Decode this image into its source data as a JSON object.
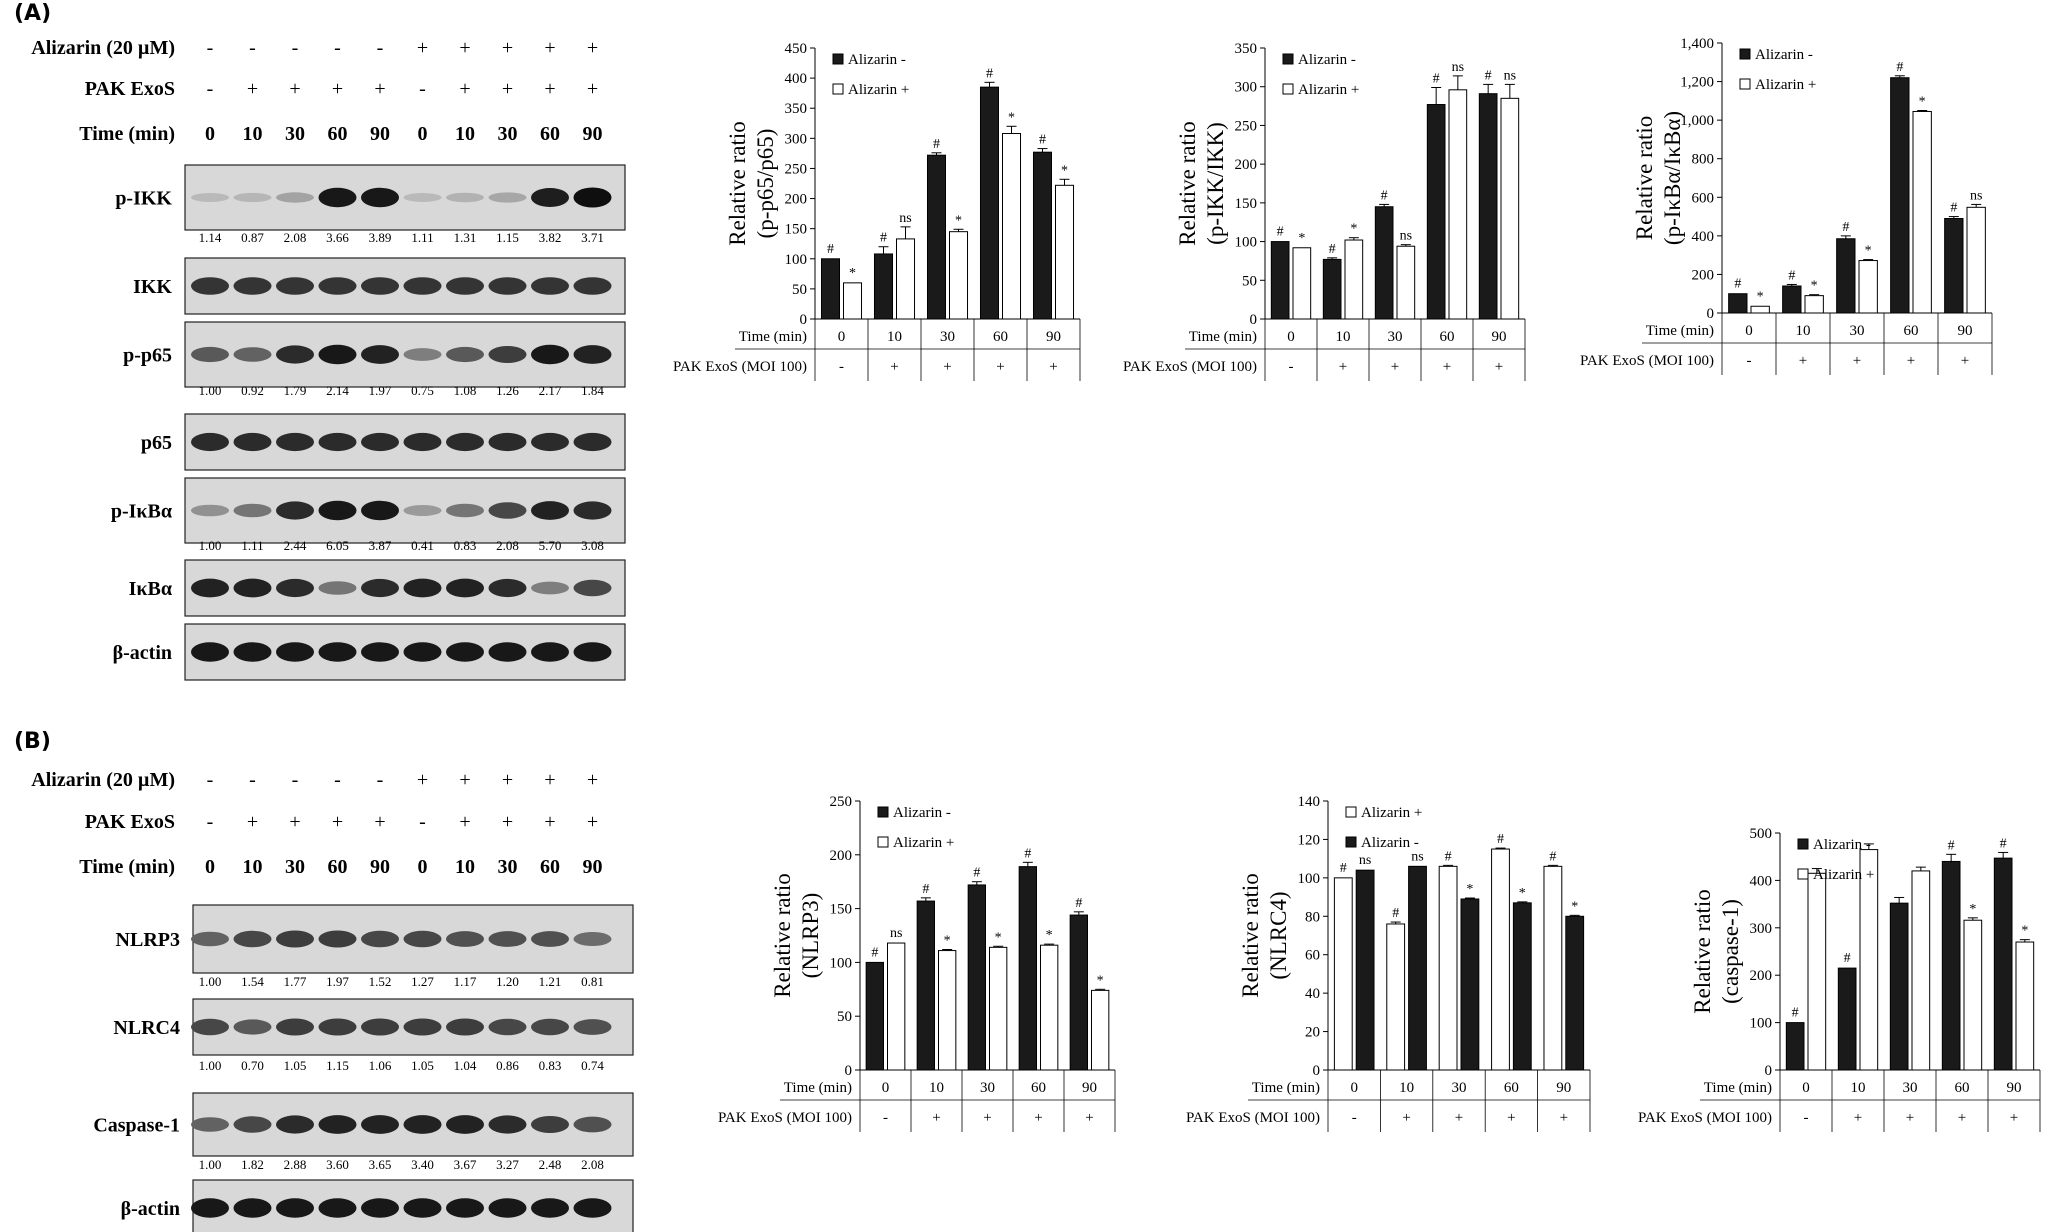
{
  "panels": [
    {
      "label": "(A)",
      "conditions": {
        "alizarin_label": "Alizarin (20 µM)",
        "alizarin": [
          "-",
          "-",
          "-",
          "-",
          "-",
          "+",
          "+",
          "+",
          "+",
          "+"
        ],
        "exos_label": "PAK ExoS",
        "exos": [
          "-",
          "+",
          "+",
          "+",
          "+",
          "-",
          "+",
          "+",
          "+",
          "+"
        ],
        "time_label": "Time (min)",
        "time": [
          "0",
          "10",
          "30",
          "60",
          "90",
          "0",
          "10",
          "30",
          "60",
          "90"
        ]
      },
      "blots": [
        {
          "name": "p-IKK",
          "intensity": [
            0.08,
            0.1,
            0.2,
            0.95,
            0.95,
            0.08,
            0.12,
            0.18,
            0.92,
            1.0
          ],
          "quant": [
            "1.14",
            "0.87",
            "2.08",
            "3.66",
            "3.89",
            "1.11",
            "1.31",
            "1.15",
            "3.82",
            "3.71"
          ]
        },
        {
          "name": "IKK",
          "intensity": [
            0.8,
            0.8,
            0.8,
            0.8,
            0.8,
            0.8,
            0.8,
            0.8,
            0.8,
            0.8
          ]
        },
        {
          "name": "p-p65",
          "intensity": [
            0.6,
            0.55,
            0.85,
            0.95,
            0.9,
            0.4,
            0.6,
            0.75,
            0.95,
            0.9
          ],
          "quant": [
            "1.00",
            "0.92",
            "1.79",
            "2.14",
            "1.97",
            "0.75",
            "1.08",
            "1.26",
            "2.17",
            "1.84"
          ]
        },
        {
          "name": "p65",
          "intensity": [
            0.85,
            0.85,
            0.85,
            0.85,
            0.85,
            0.85,
            0.85,
            0.85,
            0.85,
            0.85
          ]
        },
        {
          "name": "p-IκBα",
          "intensity": [
            0.3,
            0.45,
            0.85,
            0.95,
            0.95,
            0.25,
            0.45,
            0.7,
            0.9,
            0.85
          ],
          "quant": [
            "1.00",
            "1.11",
            "2.44",
            "6.05",
            "3.87",
            "0.41",
            "0.83",
            "2.08",
            "5.70",
            "3.08"
          ]
        },
        {
          "name": "IκBα",
          "intensity": [
            0.9,
            0.9,
            0.85,
            0.45,
            0.85,
            0.9,
            0.9,
            0.85,
            0.4,
            0.7
          ]
        },
        {
          "name": "β-actin",
          "intensity": [
            0.95,
            0.95,
            0.95,
            0.95,
            0.95,
            0.95,
            0.95,
            0.95,
            0.95,
            0.95
          ]
        }
      ]
    },
    {
      "label": "(B)",
      "conditions": {
        "alizarin_label": "Alizarin (20 µM)",
        "alizarin": [
          "-",
          "-",
          "-",
          "-",
          "-",
          "+",
          "+",
          "+",
          "+",
          "+"
        ],
        "exos_label": "PAK ExoS",
        "exos": [
          "-",
          "+",
          "+",
          "+",
          "+",
          "-",
          "+",
          "+",
          "+",
          "+"
        ],
        "time_label": "Time (min)",
        "time": [
          "0",
          "10",
          "30",
          "60",
          "90",
          "0",
          "10",
          "30",
          "60",
          "90"
        ]
      },
      "blots": [
        {
          "name": "NLRP3",
          "intensity": [
            0.55,
            0.7,
            0.75,
            0.75,
            0.7,
            0.7,
            0.65,
            0.65,
            0.65,
            0.5
          ],
          "quant": [
            "1.00",
            "1.54",
            "1.77",
            "1.97",
            "1.52",
            "1.27",
            "1.17",
            "1.20",
            "1.21",
            "0.81"
          ]
        },
        {
          "name": "NLRC4",
          "intensity": [
            0.7,
            0.6,
            0.75,
            0.75,
            0.75,
            0.75,
            0.75,
            0.7,
            0.7,
            0.65
          ],
          "quant": [
            "1.00",
            "0.70",
            "1.05",
            "1.15",
            "1.06",
            "1.05",
            "1.04",
            "0.86",
            "0.83",
            "0.74"
          ]
        },
        {
          "name": "Caspase-1",
          "intensity": [
            0.55,
            0.7,
            0.85,
            0.9,
            0.9,
            0.9,
            0.9,
            0.85,
            0.75,
            0.65
          ],
          "quant": [
            "1.00",
            "1.82",
            "2.88",
            "3.60",
            "3.65",
            "3.40",
            "3.67",
            "3.27",
            "2.48",
            "2.08"
          ]
        },
        {
          "name": "β-actin",
          "intensity": [
            0.95,
            0.95,
            0.95,
            0.95,
            0.95,
            0.95,
            0.95,
            0.95,
            0.95,
            0.95
          ]
        }
      ]
    }
  ],
  "chart_data": [
    {
      "type": "bar",
      "panel": "A",
      "ylabel": "Relative ratio\n(p-p65/p65)",
      "ylim": [
        0,
        450
      ],
      "ytick_step": 50,
      "categories": [
        "0",
        "10",
        "30",
        "60",
        "90"
      ],
      "row1_label": "Time (min)",
      "row2_label": "PAK ExoS (MOI 100)",
      "row2": [
        "-",
        "+",
        "+",
        "+",
        "+"
      ],
      "legend": "top-left",
      "series": [
        {
          "name": "Alizarin -",
          "values": [
            100,
            108,
            272,
            385,
            277
          ],
          "errors": [
            0,
            12,
            4,
            8,
            6
          ],
          "marks": [
            "#",
            "#",
            "#",
            "#",
            "#"
          ]
        },
        {
          "name": "Alizarin +",
          "values": [
            60,
            133,
            145,
            308,
            222
          ],
          "errors": [
            0,
            20,
            4,
            12,
            10
          ],
          "marks": [
            "*",
            "ns",
            "*",
            "*",
            "*"
          ]
        }
      ]
    },
    {
      "type": "bar",
      "panel": "A",
      "ylabel": "Relative ratio\n(p-IKK/IKK)",
      "ylim": [
        0,
        350
      ],
      "ytick_step": 50,
      "categories": [
        "0",
        "10",
        "30",
        "60",
        "90"
      ],
      "row1_label": "Time (min)",
      "row2_label": "PAK ExoS (MOI 100)",
      "row2": [
        "-",
        "+",
        "+",
        "+",
        "+"
      ],
      "legend": "top-left",
      "series": [
        {
          "name": "Alizarin -",
          "values": [
            100,
            77,
            145,
            277,
            291
          ],
          "errors": [
            0,
            2,
            3,
            22,
            12
          ],
          "marks": [
            "#",
            "#",
            "#",
            "#",
            "#"
          ]
        },
        {
          "name": "Alizarin +",
          "values": [
            92,
            102,
            94,
            296,
            285
          ],
          "errors": [
            0,
            3,
            2,
            18,
            18
          ],
          "marks": [
            "*",
            "*",
            "ns",
            "ns",
            "ns"
          ]
        }
      ]
    },
    {
      "type": "bar",
      "panel": "A",
      "ylabel": "Relative ratio\n(p-IκBα/IκBα)",
      "ylim": [
        0,
        1400
      ],
      "ytick_step": 200,
      "tick_format": "comma",
      "categories": [
        "0",
        "10",
        "30",
        "60",
        "90"
      ],
      "row1_label": "Time (min)",
      "row2_label": "PAK ExoS (MOI 100)",
      "row2": [
        "-",
        "+",
        "+",
        "+",
        "+"
      ],
      "legend": "top-left",
      "series": [
        {
          "name": "Alizarin -",
          "values": [
            100,
            140,
            385,
            1220,
            490
          ],
          "errors": [
            0,
            8,
            15,
            10,
            10
          ],
          "marks": [
            "#",
            "#",
            "#",
            "#",
            "#"
          ]
        },
        {
          "name": "Alizarin +",
          "values": [
            35,
            90,
            272,
            1045,
            548
          ],
          "errors": [
            0,
            5,
            5,
            5,
            15
          ],
          "marks": [
            "*",
            "*",
            "*",
            "*",
            "ns"
          ]
        }
      ]
    },
    {
      "type": "bar",
      "panel": "B",
      "ylabel": "Relative ratio\n(NLRP3)",
      "ylim": [
        0,
        250
      ],
      "ytick_step": 50,
      "categories": [
        "0",
        "10",
        "30",
        "60",
        "90"
      ],
      "row1_label": "Time (min)",
      "row2_label": "PAK ExoS (MOI 100)",
      "row2": [
        "-",
        "+",
        "+",
        "+",
        "+"
      ],
      "legend": "top-left",
      "series": [
        {
          "name": "Alizarin -",
          "values": [
            100,
            157,
            172,
            189,
            144
          ],
          "errors": [
            0,
            3,
            3,
            4,
            3
          ],
          "marks": [
            "#",
            "#",
            "#",
            "#",
            "#"
          ]
        },
        {
          "name": "Alizarin +",
          "values": [
            118,
            111,
            114,
            116,
            74
          ],
          "errors": [
            0,
            1,
            1,
            1,
            1
          ],
          "marks": [
            "ns",
            "*",
            "*",
            "*",
            "*"
          ]
        }
      ]
    },
    {
      "type": "bar",
      "panel": "B",
      "ylabel": "Relative ratio\n(NLRC4)",
      "ylim": [
        0,
        140
      ],
      "ytick_step": 20,
      "categories": [
        "0",
        "10",
        "30",
        "60",
        "90"
      ],
      "row1_label": "Time (min)",
      "row2_label": "PAK ExoS (MOI 100)",
      "row2": [
        "-",
        "+",
        "+",
        "+",
        "+"
      ],
      "legend": "top-left",
      "series": [
        {
          "name": "Alizarin +",
          "values": [
            100,
            76,
            106,
            115,
            106
          ],
          "errors": [
            0,
            1,
            0.5,
            0.5,
            0.5
          ],
          "marks": [
            "#",
            "#",
            "#",
            "#",
            "#"
          ]
        },
        {
          "name": "Alizarin -",
          "values": [
            104,
            106,
            89,
            87,
            80
          ],
          "errors": [
            0,
            0,
            0.5,
            0.5,
            0.5
          ],
          "marks": [
            "ns",
            "ns",
            "*",
            "*",
            "*"
          ]
        }
      ]
    },
    {
      "type": "bar",
      "panel": "B",
      "ylabel": "Relative ratio\n(caspase-1)",
      "ylim": [
        0,
        500
      ],
      "ytick_step": 100,
      "categories": [
        "0",
        "10",
        "30",
        "60",
        "90"
      ],
      "row1_label": "Time (min)",
      "row2_label": "PAK ExoS (MOI 100)",
      "row2": [
        "-",
        "+",
        "+",
        "+",
        "+"
      ],
      "legend": "top-left",
      "series": [
        {
          "name": "Alizarin -",
          "values": [
            100,
            215,
            352,
            440,
            447
          ],
          "errors": [
            0,
            0,
            12,
            15,
            12
          ],
          "marks": [
            "#",
            "#",
            "",
            "#",
            "#"
          ]
        },
        {
          "name": "Alizarin +",
          "values": [
            415,
            465,
            420,
            316,
            270
          ],
          "errors": [
            10,
            12,
            8,
            5,
            5
          ],
          "marks": [
            "",
            "",
            "",
            "*",
            "*"
          ]
        }
      ]
    }
  ]
}
